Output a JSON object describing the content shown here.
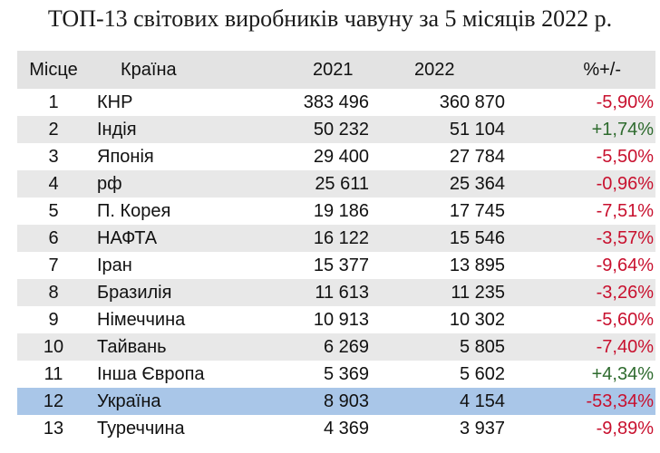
{
  "title": "ТОП-13 світових виробників чавуну за 5 місяців 2022 р.",
  "table": {
    "headers": {
      "rank": "Місце",
      "country": "Країна",
      "y2021": "2021",
      "y2022": "2022",
      "change": "%+/-"
    },
    "rows": [
      {
        "rank": "1",
        "country": "КНР",
        "y2021": "383 496",
        "y2022": "360 870",
        "change": "-5,90%",
        "direction": "negative"
      },
      {
        "rank": "2",
        "country": "Індія",
        "y2021": "50 232",
        "y2022": "51 104",
        "change": "+1,74%",
        "direction": "positive"
      },
      {
        "rank": "3",
        "country": "Японія",
        "y2021": "29 400",
        "y2022": "27 784",
        "change": "-5,50%",
        "direction": "negative"
      },
      {
        "rank": "4",
        "country": "рф",
        "y2021": "25 611",
        "y2022": "25 364",
        "change": "-0,96%",
        "direction": "negative"
      },
      {
        "rank": "5",
        "country": "П. Корея",
        "y2021": "19 186",
        "y2022": "17 745",
        "change": "-7,51%",
        "direction": "negative"
      },
      {
        "rank": "6",
        "country": "НАФТА",
        "y2021": "16 122",
        "y2022": "15 546",
        "change": "-3,57%",
        "direction": "negative"
      },
      {
        "rank": "7",
        "country": "Іран",
        "y2021": "15 377",
        "y2022": "13 895",
        "change": "-9,64%",
        "direction": "negative"
      },
      {
        "rank": "8",
        "country": "Бразилія",
        "y2021": "11 613",
        "y2022": "11 235",
        "change": "-3,26%",
        "direction": "negative"
      },
      {
        "rank": "9",
        "country": "Німеччина",
        "y2021": "10 913",
        "y2022": "10 302",
        "change": "-5,60%",
        "direction": "negative"
      },
      {
        "rank": "10",
        "country": "Тайвань",
        "y2021": "6 269",
        "y2022": "5 805",
        "change": "-7,40%",
        "direction": "negative"
      },
      {
        "rank": "11",
        "country": "Інша Європа",
        "y2021": "5 369",
        "y2022": "5 602",
        "change": "+4,34%",
        "direction": "positive"
      },
      {
        "rank": "12",
        "country": "Україна",
        "y2021": "8 903",
        "y2022": "4 154",
        "change": "-53,34%",
        "direction": "negative",
        "highlighted": true
      },
      {
        "rank": "13",
        "country": "Туреччина",
        "y2021": "4 369",
        "y2022": "3 937",
        "change": "-9,89%",
        "direction": "negative"
      }
    ]
  },
  "colors": {
    "negative": "#c8102e",
    "positive": "#2e6b2e",
    "header_bg": "#e3e3e3",
    "stripe_bg": "#e8e8e8",
    "highlight_bg": "#a9c6e8"
  }
}
